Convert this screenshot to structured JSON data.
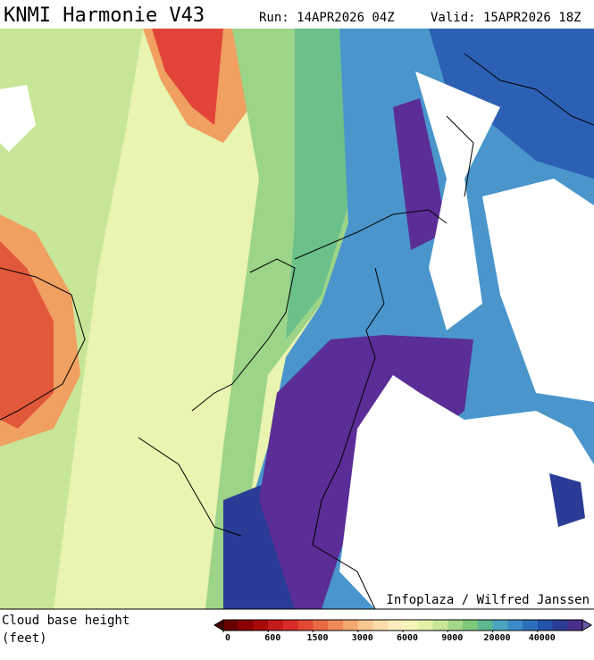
{
  "header": {
    "title": "KNMI Harmonie V43",
    "run": "Run: 14APR2026 04Z",
    "valid": "Valid: 15APR2026 18Z"
  },
  "map": {
    "credit": "Infoplaza / Wilfred Janssen"
  },
  "legend": {
    "label": "Cloud base height",
    "unit": "(feet)",
    "ticks": [
      0,
      600,
      1500,
      3000,
      6000,
      9000,
      20000,
      40000
    ],
    "colors": [
      "#6b0000",
      "#8b0000",
      "#a80a0a",
      "#c41a1a",
      "#d82c28",
      "#e24a34",
      "#ea6a44",
      "#f08a58",
      "#f4a870",
      "#f8c690",
      "#fbdcaa",
      "#fdecbe",
      "#f6f6b8",
      "#e4f2a8",
      "#c8e698",
      "#a4d888",
      "#7ec87c",
      "#5cb890",
      "#4aa6c0",
      "#3a8cc8",
      "#2c70bc",
      "#2254a8",
      "#2a3c96",
      "#4a2e8c"
    ]
  }
}
